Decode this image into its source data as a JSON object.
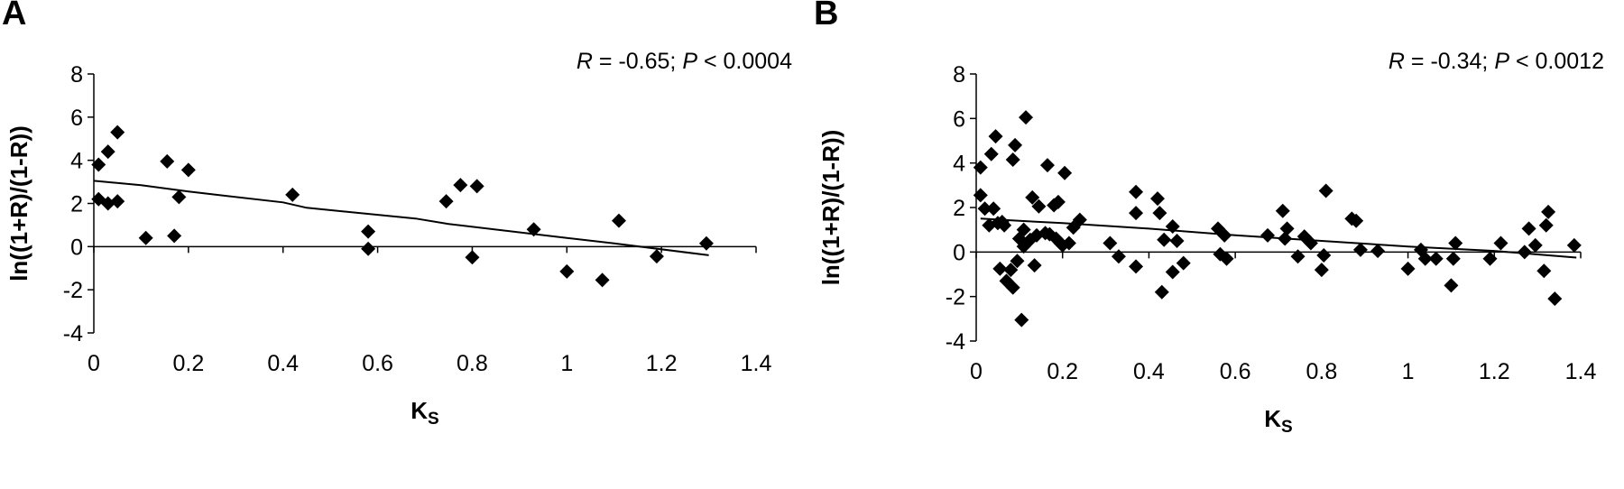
{
  "chart_data": [
    {
      "type": "scatter",
      "panel_label": "A",
      "annotation": {
        "r_label": "R",
        "r_value": "= -0.65;",
        "p_label": "P",
        "p_value": "< 0.0004"
      },
      "xlabel": "K",
      "xlabel_sub": "S",
      "ylabel": "ln((1+R)/(1-R))",
      "xlim": [
        0,
        1.4
      ],
      "ylim": [
        -4,
        8
      ],
      "xticks": [
        0,
        0.2,
        0.4,
        0.6,
        0.8,
        1,
        1.2,
        1.4
      ],
      "yticks": [
        -4,
        -2,
        0,
        2,
        4,
        6,
        8
      ],
      "grid": false,
      "points": [
        [
          0.01,
          3.8
        ],
        [
          0.01,
          2.2
        ],
        [
          0.03,
          2.0
        ],
        [
          0.03,
          4.4
        ],
        [
          0.05,
          5.3
        ],
        [
          0.05,
          2.1
        ],
        [
          0.11,
          0.4
        ],
        [
          0.155,
          3.95
        ],
        [
          0.17,
          0.5
        ],
        [
          0.18,
          2.3
        ],
        [
          0.2,
          3.55
        ],
        [
          0.42,
          2.4
        ],
        [
          0.58,
          0.7
        ],
        [
          0.58,
          -0.1
        ],
        [
          0.745,
          2.1
        ],
        [
          0.775,
          2.85
        ],
        [
          0.8,
          -0.5
        ],
        [
          0.81,
          2.8
        ],
        [
          0.93,
          0.8
        ],
        [
          1.0,
          -1.15
        ],
        [
          1.075,
          -1.55
        ],
        [
          1.11,
          1.2
        ],
        [
          1.19,
          -0.45
        ],
        [
          1.295,
          0.15
        ]
      ],
      "trendline": [
        [
          0,
          3.05
        ],
        [
          0.1,
          2.85
        ],
        [
          0.2,
          2.55
        ],
        [
          0.4,
          2.05
        ],
        [
          0.45,
          1.8
        ],
        [
          0.68,
          1.3
        ],
        [
          0.75,
          1.05
        ],
        [
          1.0,
          0.4
        ],
        [
          1.1,
          0.15
        ],
        [
          1.3,
          -0.4
        ]
      ]
    },
    {
      "type": "scatter",
      "panel_label": "B",
      "annotation": {
        "r_label": "R",
        "r_value": "= -0.34;",
        "p_label": "P",
        "p_value": "< 0.0012"
      },
      "xlabel": "K",
      "xlabel_sub": "S",
      "ylabel": "ln((1+R)/(1-R))",
      "xlim": [
        0,
        1.4
      ],
      "ylim": [
        -4,
        8
      ],
      "xticks": [
        0,
        0.2,
        0.4,
        0.6,
        0.8,
        1,
        1.2,
        1.4
      ],
      "yticks": [
        -4,
        -2,
        0,
        2,
        4,
        6,
        8
      ],
      "grid": false,
      "points": [
        [
          0.01,
          3.8
        ],
        [
          0.01,
          2.55
        ],
        [
          0.02,
          1.95
        ],
        [
          0.03,
          1.2
        ],
        [
          0.035,
          4.4
        ],
        [
          0.04,
          1.95
        ],
        [
          0.045,
          5.2
        ],
        [
          0.05,
          1.3
        ],
        [
          0.055,
          -0.75
        ],
        [
          0.06,
          1.35
        ],
        [
          0.065,
          1.2
        ],
        [
          0.07,
          -1.3
        ],
        [
          0.08,
          -0.8
        ],
        [
          0.085,
          -1.6
        ],
        [
          0.085,
          4.15
        ],
        [
          0.09,
          4.8
        ],
        [
          0.095,
          -0.4
        ],
        [
          0.1,
          0.6
        ],
        [
          0.105,
          -3.05
        ],
        [
          0.11,
          1.0
        ],
        [
          0.11,
          0.25
        ],
        [
          0.115,
          6.05
        ],
        [
          0.125,
          0.55
        ],
        [
          0.13,
          2.45
        ],
        [
          0.135,
          -0.6
        ],
        [
          0.14,
          0.75
        ],
        [
          0.145,
          2.05
        ],
        [
          0.16,
          0.85
        ],
        [
          0.165,
          3.9
        ],
        [
          0.17,
          0.8
        ],
        [
          0.18,
          2.1
        ],
        [
          0.185,
          0.6
        ],
        [
          0.19,
          2.25
        ],
        [
          0.195,
          0.4
        ],
        [
          0.2,
          0.3
        ],
        [
          0.205,
          3.55
        ],
        [
          0.215,
          0.4
        ],
        [
          0.225,
          1.1
        ],
        [
          0.24,
          1.45
        ],
        [
          0.31,
          0.4
        ],
        [
          0.33,
          -0.2
        ],
        [
          0.37,
          1.75
        ],
        [
          0.37,
          2.7
        ],
        [
          0.37,
          -0.65
        ],
        [
          0.42,
          2.4
        ],
        [
          0.425,
          1.75
        ],
        [
          0.43,
          -1.8
        ],
        [
          0.435,
          0.55
        ],
        [
          0.455,
          1.15
        ],
        [
          0.455,
          -0.9
        ],
        [
          0.465,
          0.5
        ],
        [
          0.48,
          -0.5
        ],
        [
          0.56,
          1.05
        ],
        [
          0.565,
          -0.1
        ],
        [
          0.575,
          0.75
        ],
        [
          0.58,
          -0.3
        ],
        [
          0.675,
          0.75
        ],
        [
          0.71,
          1.85
        ],
        [
          0.715,
          0.6
        ],
        [
          0.72,
          1.05
        ],
        [
          0.745,
          -0.2
        ],
        [
          0.76,
          0.7
        ],
        [
          0.775,
          0.4
        ],
        [
          0.8,
          -0.8
        ],
        [
          0.805,
          -0.15
        ],
        [
          0.81,
          2.75
        ],
        [
          0.87,
          1.5
        ],
        [
          0.88,
          1.4
        ],
        [
          0.89,
          0.1
        ],
        [
          0.93,
          0.05
        ],
        [
          1.0,
          -0.75
        ],
        [
          1.03,
          0.1
        ],
        [
          1.04,
          -0.3
        ],
        [
          1.065,
          -0.3
        ],
        [
          1.1,
          -1.5
        ],
        [
          1.105,
          -0.3
        ],
        [
          1.11,
          0.4
        ],
        [
          1.19,
          -0.3
        ],
        [
          1.215,
          0.4
        ],
        [
          1.27,
          0.0
        ],
        [
          1.28,
          1.05
        ],
        [
          1.295,
          0.3
        ],
        [
          1.315,
          -0.85
        ],
        [
          1.32,
          1.2
        ],
        [
          1.325,
          1.8
        ],
        [
          1.34,
          -2.1
        ],
        [
          1.385,
          0.3
        ]
      ],
      "trendline": [
        [
          0.01,
          1.5
        ],
        [
          0.1,
          1.4
        ],
        [
          0.2,
          1.3
        ],
        [
          0.4,
          1.05
        ],
        [
          0.6,
          0.75
        ],
        [
          0.8,
          0.5
        ],
        [
          1.0,
          0.25
        ],
        [
          1.2,
          0.05
        ],
        [
          1.39,
          -0.25
        ]
      ]
    }
  ]
}
